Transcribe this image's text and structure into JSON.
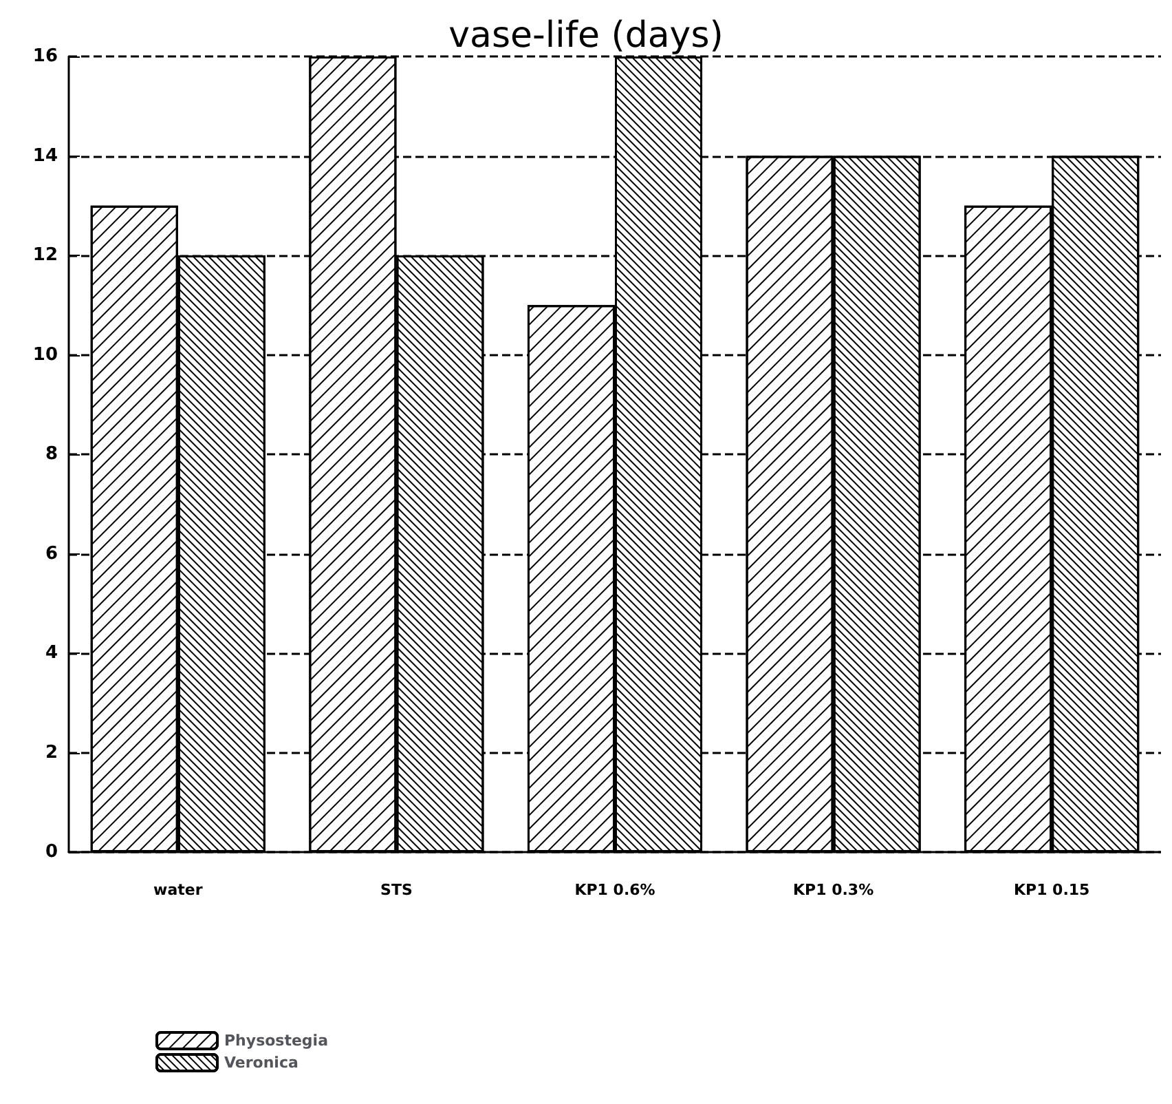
{
  "chart_data": {
    "type": "bar",
    "title": "vase-life (days)",
    "categories": [
      "water",
      "STS",
      "KP1 0.6%",
      "KP1 0.3%",
      "KP1 0.15"
    ],
    "series": [
      {
        "name": "Physostegia",
        "color": "#000000",
        "values": [
          13,
          16,
          11,
          14,
          13
        ]
      },
      {
        "name": "Veronica",
        "color": "#000000",
        "values": [
          12,
          12,
          16,
          14,
          14
        ]
      }
    ],
    "ylim": [
      0,
      16
    ],
    "yticks": [
      0,
      2,
      4,
      6,
      8,
      10,
      12,
      14,
      16
    ],
    "grid": "y",
    "line_style": "dashed",
    "legend": "bottom left"
  }
}
